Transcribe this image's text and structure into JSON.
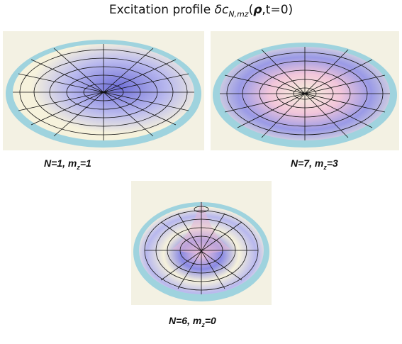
{
  "title": {
    "prefix": "Excitation profile ",
    "symbol": "δc",
    "subscript": "N,mz",
    "open": "(",
    "rho": "ρ",
    "suffix": ",t=0)"
  },
  "panels": [
    {
      "N_label": "N=1, m",
      "m_sub": "z",
      "m_value": "=1"
    },
    {
      "N_label": "N=7, m",
      "m_sub": "z",
      "m_value": "=3"
    },
    {
      "N_label": "N=6, m",
      "m_sub": "z",
      "m_value": "=0"
    }
  ],
  "colors": {
    "disc_edge": "#9fd3de",
    "surface_light": "#f6f2dc",
    "surface_blue": "#7f7fe0",
    "surface_pink": "#f2c6da",
    "grid": "#111111",
    "background": "#f3f1e3"
  }
}
